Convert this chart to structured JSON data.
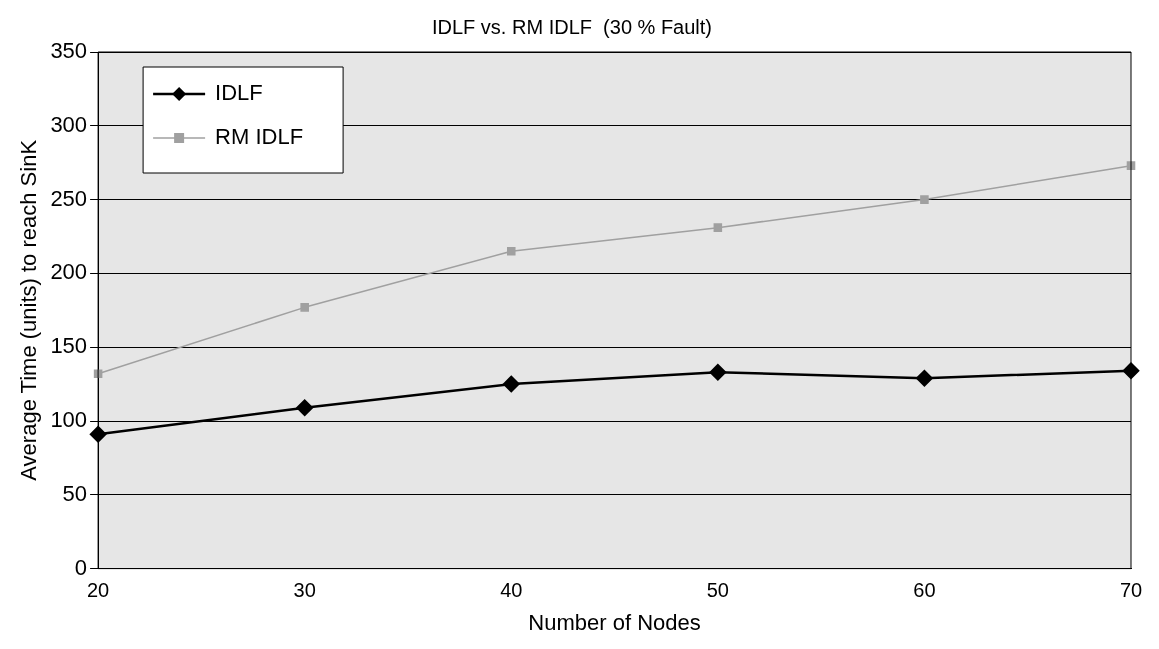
{
  "chart_data": {
    "type": "line",
    "title": "IDLF vs. RM IDLF  (30 % Fault)",
    "xlabel": "Number of Nodes",
    "ylabel": "Average Time (units) to reach SinK",
    "categories": [
      "20",
      "30",
      "40",
      "50",
      "60",
      "70"
    ],
    "series": [
      {
        "name": "IDLF",
        "color": "#000000",
        "marker": "diamond",
        "values": [
          91,
          109,
          125,
          133,
          129,
          134
        ]
      },
      {
        "name": "RM IDLF",
        "color": "#a0a0a0",
        "marker": "square",
        "values": [
          132,
          177,
          215,
          231,
          250,
          273
        ]
      }
    ],
    "ylim": [
      0,
      350
    ],
    "yticks": [
      0,
      50,
      100,
      150,
      200,
      250,
      300,
      350
    ],
    "grid": "y",
    "legend": "top left"
  }
}
